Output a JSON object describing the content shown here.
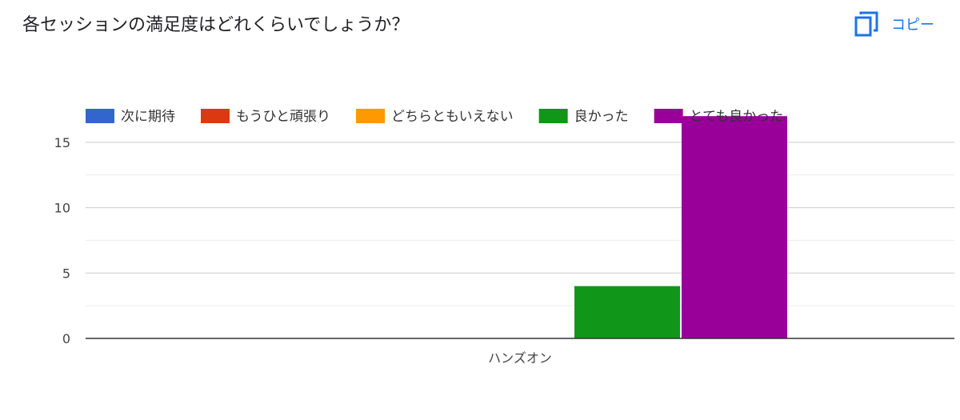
{
  "question": {
    "title": "各セッションの満足度はどれくらいでしょうか？"
  },
  "toolbar": {
    "copy_label": "コピー",
    "copy_icon": "copy-icon"
  },
  "colors": {
    "accent": "#1a73e8"
  },
  "chart_data": {
    "type": "bar",
    "categories": [
      "ハンズオン"
    ],
    "series": [
      {
        "name": "次に期待",
        "color": "#3366cc",
        "values": [
          0
        ]
      },
      {
        "name": "もうひと頑張り",
        "color": "#dc3912",
        "values": [
          0
        ]
      },
      {
        "name": "どちらともいえない",
        "color": "#ff9900",
        "values": [
          0
        ]
      },
      {
        "name": "良かった",
        "color": "#109618",
        "values": [
          4
        ]
      },
      {
        "name": "とても良かった",
        "color": "#990099",
        "values": [
          17
        ]
      }
    ],
    "yticks": [
      0,
      5,
      10,
      15
    ],
    "ylim": [
      0,
      17.5
    ],
    "grid": true,
    "legend": "top-left",
    "title": "",
    "xlabel": "",
    "ylabel": ""
  }
}
